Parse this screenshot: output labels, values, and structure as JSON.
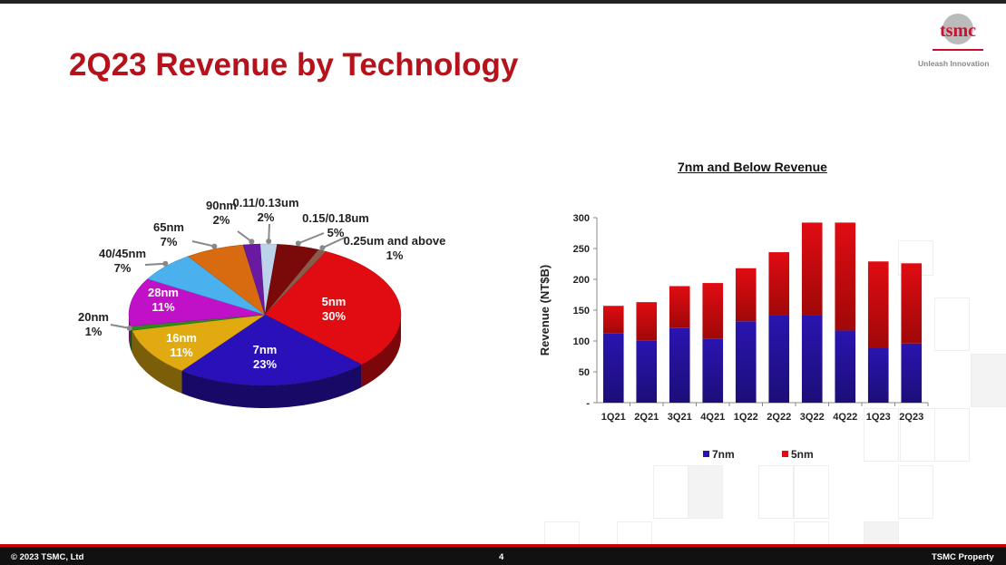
{
  "slide": {
    "title": "2Q23 Revenue by Technology",
    "logo_text": "tsmc",
    "tagline": "Unleash Innovation",
    "page_number": "4",
    "copyright": "© 2023 TSMC, Ltd",
    "property": "TSMC Property"
  },
  "chart_data": [
    {
      "type": "pie",
      "slices": [
        {
          "label": "0.11/0.13um",
          "value": 2,
          "pct": "2%",
          "color": "#bcd3ea"
        },
        {
          "label": "0.15/0.18um",
          "value": 5,
          "pct": "5%",
          "color": "#7a0a0a"
        },
        {
          "label": "0.25um and above",
          "value": 1,
          "pct": "1%",
          "color": "#8a5a4a"
        },
        {
          "label": "5nm",
          "value": 30,
          "pct": "30%",
          "color": "#e00c12"
        },
        {
          "label": "7nm",
          "value": 23,
          "pct": "23%",
          "color": "#2a10b8"
        },
        {
          "label": "16nm",
          "value": 11,
          "pct": "11%",
          "color": "#e0aa10"
        },
        {
          "label": "20nm",
          "value": 1,
          "pct": "1%",
          "color": "#2e8a1a"
        },
        {
          "label": "28nm",
          "value": 11,
          "pct": "11%",
          "color": "#c010c8"
        },
        {
          "label": "40/45nm",
          "value": 7,
          "pct": "7%",
          "color": "#4ab0ee"
        },
        {
          "label": "65nm",
          "value": 7,
          "pct": "7%",
          "color": "#d86a10"
        },
        {
          "label": "90nm",
          "value": 2,
          "pct": "2%",
          "color": "#6a1aa0"
        }
      ]
    },
    {
      "type": "bar",
      "stacked": true,
      "title": "7nm and Below Revenue",
      "ylabel": "Revenue (NT$B)",
      "ylim": [
        0,
        300
      ],
      "yticks": [
        "-",
        "50",
        "100",
        "150",
        "200",
        "250",
        "300"
      ],
      "categories": [
        "1Q21",
        "2Q21",
        "3Q21",
        "4Q21",
        "1Q22",
        "2Q22",
        "3Q22",
        "4Q22",
        "1Q23",
        "2Q23"
      ],
      "series": [
        {
          "name": "7nm",
          "color": "#2a14b0",
          "values": [
            112,
            101,
            121,
            104,
            132,
            142,
            142,
            117,
            89,
            96
          ]
        },
        {
          "name": "5nm",
          "color": "#e00c12",
          "values": [
            45,
            62,
            68,
            90,
            86,
            102,
            150,
            175,
            140,
            130
          ]
        }
      ],
      "legend": "bottom"
    }
  ]
}
